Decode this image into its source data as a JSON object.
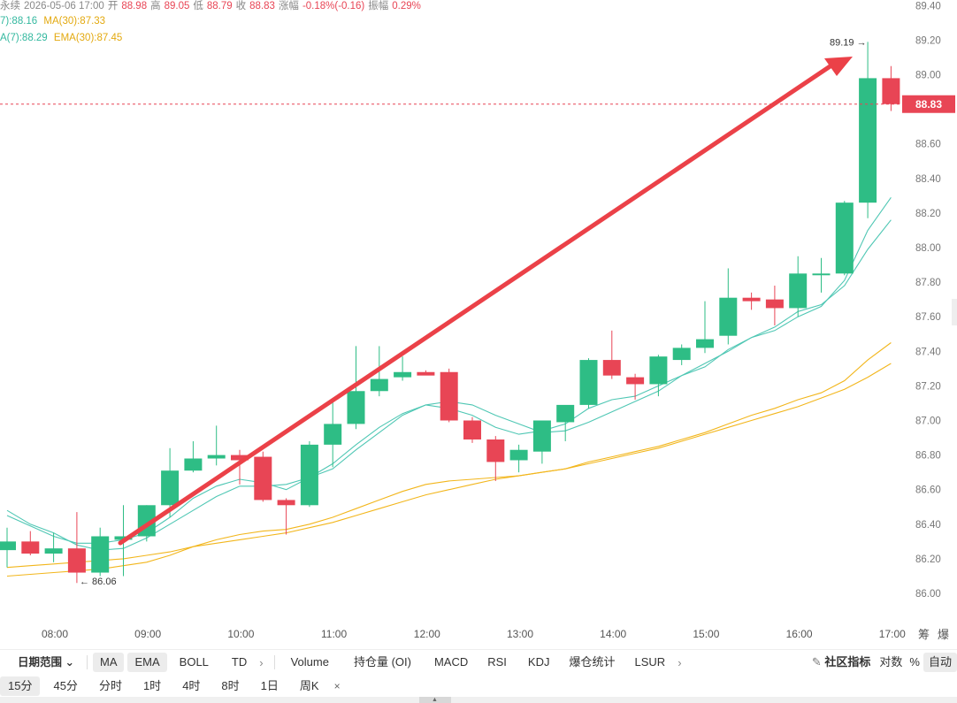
{
  "info": {
    "line1": {
      "label": "永续",
      "datetime": "2026-05-06 17:00",
      "open_label": "开",
      "open": "88.98",
      "high_label": "高",
      "high": "89.05",
      "low_label": "低",
      "low": "88.79",
      "close_label": "收",
      "close": "88.83",
      "change_label": "涨幅",
      "change": "-0.18%(-0.16)",
      "amp_label": "振幅",
      "amp": "0.29%"
    },
    "line2": {
      "ma7": "7):88.16",
      "ma30": "MA(30):87.33"
    },
    "line3": {
      "ema7": "A(7):88.29",
      "ema30": "EMA(30):87.45"
    }
  },
  "colors": {
    "up": "#2ebd85",
    "down": "#e84555",
    "ma7": "#4fc7b4",
    "ma30": "#f2b61c",
    "arrow": "#eb4148"
  },
  "chart_data": {
    "type": "candlestick",
    "price_axis_ticks": [
      "89.40",
      "89.20",
      "89.00",
      "88.80",
      "88.60",
      "88.40",
      "88.20",
      "88.00",
      "87.80",
      "87.60",
      "87.40",
      "87.20",
      "87.00",
      "86.80",
      "86.60",
      "86.40",
      "86.20",
      "86.00"
    ],
    "time_axis_ticks": [
      "08:00",
      "09:00",
      "10:00",
      "11:00",
      "12:00",
      "13:00",
      "14:00",
      "15:00",
      "16:00",
      "17:00"
    ],
    "ylim": [
      85.9,
      89.4
    ],
    "current_price": "88.83",
    "high_marker": "89.19",
    "low_marker": "86.06",
    "candles": [
      {
        "o": 86.25,
        "h": 86.38,
        "l": 86.15,
        "c": 86.3
      },
      {
        "o": 86.3,
        "h": 86.36,
        "l": 86.22,
        "c": 86.23
      },
      {
        "o": 86.23,
        "h": 86.35,
        "l": 86.18,
        "c": 86.26
      },
      {
        "o": 86.26,
        "h": 86.47,
        "l": 86.06,
        "c": 86.12
      },
      {
        "o": 86.12,
        "h": 86.38,
        "l": 86.1,
        "c": 86.33
      },
      {
        "o": 86.31,
        "h": 86.51,
        "l": 86.1,
        "c": 86.33
      },
      {
        "o": 86.33,
        "h": 86.51,
        "l": 86.3,
        "c": 86.51
      },
      {
        "o": 86.51,
        "h": 86.84,
        "l": 86.44,
        "c": 86.71
      },
      {
        "o": 86.71,
        "h": 86.88,
        "l": 86.7,
        "c": 86.78
      },
      {
        "o": 86.78,
        "h": 86.97,
        "l": 86.74,
        "c": 86.8
      },
      {
        "o": 86.8,
        "h": 86.83,
        "l": 86.63,
        "c": 86.77
      },
      {
        "o": 86.79,
        "h": 86.82,
        "l": 86.53,
        "c": 86.54
      },
      {
        "o": 86.54,
        "h": 86.55,
        "l": 86.34,
        "c": 86.51
      },
      {
        "o": 86.51,
        "h": 86.88,
        "l": 86.5,
        "c": 86.86
      },
      {
        "o": 86.86,
        "h": 87.13,
        "l": 86.73,
        "c": 86.98
      },
      {
        "o": 86.98,
        "h": 87.43,
        "l": 86.95,
        "c": 87.17
      },
      {
        "o": 87.17,
        "h": 87.43,
        "l": 87.14,
        "c": 87.24
      },
      {
        "o": 87.25,
        "h": 87.37,
        "l": 87.23,
        "c": 87.28
      },
      {
        "o": 87.28,
        "h": 87.29,
        "l": 87.27,
        "c": 87.26
      },
      {
        "o": 87.28,
        "h": 87.3,
        "l": 86.99,
        "c": 87.0
      },
      {
        "o": 87.0,
        "h": 87.02,
        "l": 86.87,
        "c": 86.89
      },
      {
        "o": 86.89,
        "h": 86.91,
        "l": 86.65,
        "c": 86.76
      },
      {
        "o": 86.77,
        "h": 86.86,
        "l": 86.7,
        "c": 86.83
      },
      {
        "o": 86.82,
        "h": 86.99,
        "l": 86.75,
        "c": 87.0
      },
      {
        "o": 86.99,
        "h": 87.08,
        "l": 86.88,
        "c": 87.09
      },
      {
        "o": 87.09,
        "h": 87.36,
        "l": 87.07,
        "c": 87.35
      },
      {
        "o": 87.35,
        "h": 87.52,
        "l": 87.24,
        "c": 87.26
      },
      {
        "o": 87.25,
        "h": 87.27,
        "l": 87.12,
        "c": 87.21
      },
      {
        "o": 87.21,
        "h": 87.38,
        "l": 87.14,
        "c": 87.37
      },
      {
        "o": 87.35,
        "h": 87.44,
        "l": 87.32,
        "c": 87.42
      },
      {
        "o": 87.42,
        "h": 87.69,
        "l": 87.39,
        "c": 87.47
      },
      {
        "o": 87.49,
        "h": 87.88,
        "l": 87.44,
        "c": 87.71
      },
      {
        "o": 87.71,
        "h": 87.74,
        "l": 87.64,
        "c": 87.69
      },
      {
        "o": 87.7,
        "h": 87.78,
        "l": 87.55,
        "c": 87.65
      },
      {
        "o": 87.65,
        "h": 87.95,
        "l": 87.6,
        "c": 87.85
      },
      {
        "o": 87.84,
        "h": 87.94,
        "l": 87.74,
        "c": 87.85
      },
      {
        "o": 87.85,
        "h": 88.27,
        "l": 87.84,
        "c": 88.26
      },
      {
        "o": 88.26,
        "h": 89.19,
        "l": 88.17,
        "c": 88.98
      },
      {
        "o": 88.98,
        "h": 89.05,
        "l": 88.79,
        "c": 88.83
      }
    ],
    "ma7": [
      86.48,
      86.4,
      86.35,
      86.28,
      86.25,
      86.26,
      86.32,
      86.4,
      86.48,
      86.56,
      86.62,
      86.62,
      86.63,
      86.67,
      86.72,
      86.83,
      86.93,
      87.03,
      87.09,
      87.11,
      87.09,
      87.03,
      86.98,
      86.93,
      86.94,
      86.99,
      87.05,
      87.11,
      87.17,
      87.26,
      87.33,
      87.4,
      87.48,
      87.54,
      87.63,
      87.67,
      87.78,
      87.99,
      88.16
    ],
    "ma30": [
      86.15,
      86.16,
      86.17,
      86.18,
      86.19,
      86.2,
      86.22,
      86.24,
      86.27,
      86.29,
      86.31,
      86.33,
      86.35,
      86.38,
      86.41,
      86.45,
      86.49,
      86.53,
      86.57,
      86.6,
      86.63,
      86.66,
      86.68,
      86.7,
      86.72,
      86.75,
      86.78,
      86.81,
      86.84,
      86.88,
      86.92,
      86.96,
      87.0,
      87.04,
      87.08,
      87.13,
      87.18,
      87.25,
      87.33
    ],
    "ema7": [
      86.45,
      86.39,
      86.33,
      86.29,
      86.29,
      86.31,
      86.35,
      86.44,
      86.55,
      86.62,
      86.66,
      86.64,
      86.6,
      86.67,
      86.75,
      86.86,
      86.96,
      87.04,
      87.09,
      87.07,
      87.03,
      86.96,
      86.92,
      86.94,
      86.98,
      87.07,
      87.12,
      87.14,
      87.2,
      87.26,
      87.31,
      87.41,
      87.48,
      87.52,
      87.6,
      87.66,
      87.81,
      88.1,
      88.29
    ],
    "ema30": [
      86.1,
      86.11,
      86.12,
      86.13,
      86.14,
      86.16,
      86.18,
      86.22,
      86.27,
      86.31,
      86.34,
      86.36,
      86.37,
      86.4,
      86.44,
      86.49,
      86.54,
      86.59,
      86.63,
      86.65,
      86.66,
      86.67,
      86.68,
      86.7,
      86.72,
      86.76,
      86.79,
      86.82,
      86.85,
      86.89,
      86.93,
      86.98,
      87.03,
      87.07,
      87.12,
      87.16,
      87.23,
      87.35,
      87.45
    ]
  },
  "toolbar": {
    "date_range": "日期范围",
    "chevron": "⌄",
    "items": [
      "MA",
      "EMA",
      "BOLL",
      "TD"
    ],
    "arrow": "›",
    "indicators": [
      "Volume",
      "持仓量 (OI)",
      "MACD",
      "RSI",
      "KDJ",
      "爆仓统计",
      "LSUR"
    ],
    "arrow2": "›",
    "community": "社区指标",
    "log": "对数",
    "percent": "%",
    "auto": "自动"
  },
  "corner": {
    "a": "筹",
    "b": "爆"
  },
  "timeframes": [
    "15分",
    "45分",
    "分时",
    "1时",
    "4时",
    "8时",
    "1日",
    "周K"
  ],
  "tf_close": "×"
}
